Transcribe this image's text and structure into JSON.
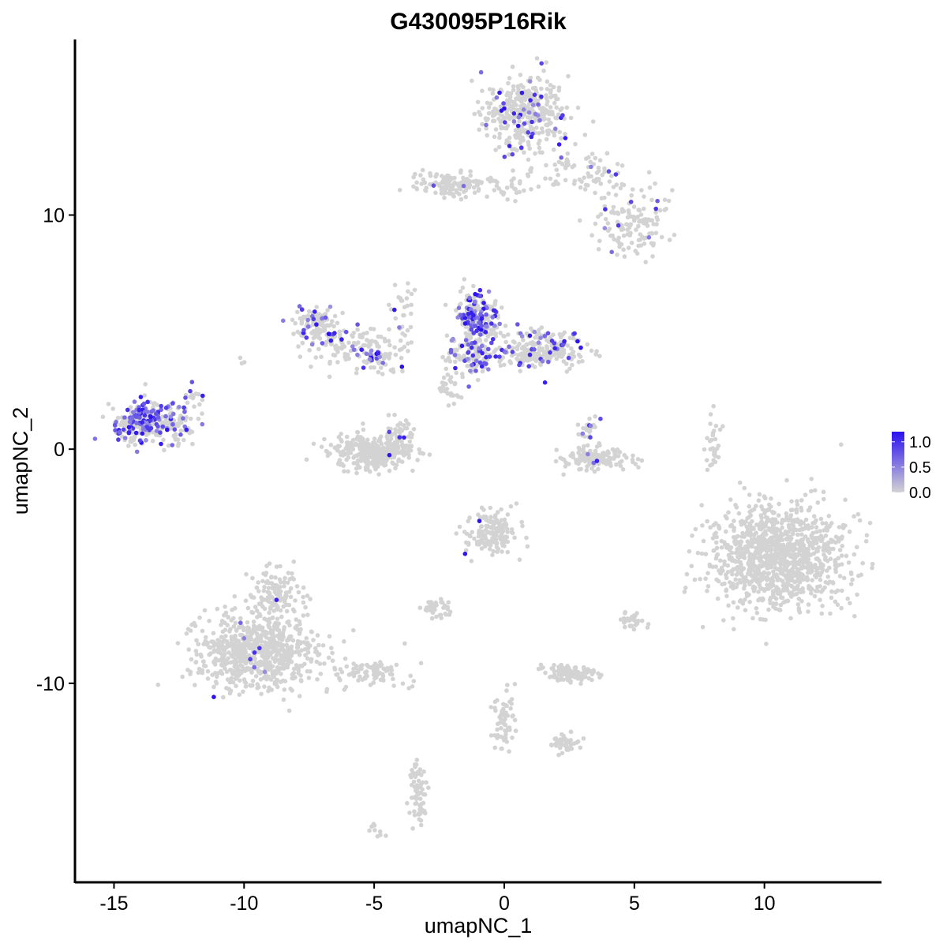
{
  "chart_data": {
    "type": "scatter",
    "title": "G430095P16Rik",
    "xlabel": "umapNC_1",
    "ylabel": "umapNC_2",
    "xlim": [
      -16.5,
      14.5
    ],
    "ylim": [
      -18.5,
      17.5
    ],
    "xticks": [
      -15,
      -10,
      -5,
      0,
      5,
      10
    ],
    "yticks": [
      -10,
      0,
      10
    ],
    "grid": false,
    "legend": {
      "placement": "right",
      "min": 0.0,
      "max": 1.2,
      "breaks": [
        "1.0",
        "0.5",
        "0.0"
      ],
      "low_color": "#d3d3d3",
      "high_color": "#2a10f0"
    },
    "point_color_default": "#d3d3d3",
    "clusters": [
      {
        "cx": 0.8,
        "cy": 14.3,
        "sx": 1.0,
        "sy": 1.0,
        "n": 360,
        "expr_frac": 0.1
      },
      {
        "cx": 2.8,
        "cy": 11.8,
        "sx": 1.3,
        "sy": 0.55,
        "n": 80,
        "expr_frac": 0.03
      },
      {
        "cx": 5.0,
        "cy": 9.6,
        "sx": 0.9,
        "sy": 0.9,
        "n": 140,
        "expr_frac": 0.07
      },
      {
        "cx": -2.2,
        "cy": 11.3,
        "sx": 0.8,
        "sy": 0.35,
        "n": 110,
        "expr_frac": 0.02
      },
      {
        "cx": -0.4,
        "cy": 11.2,
        "sx": 0.9,
        "sy": 0.3,
        "n": 40,
        "expr_frac": 0.0
      },
      {
        "cx": -7.3,
        "cy": 5.3,
        "sx": 0.5,
        "sy": 0.6,
        "n": 120,
        "expr_frac": 0.12
      },
      {
        "cx": -5.8,
        "cy": 4.5,
        "sx": 0.9,
        "sy": 0.6,
        "n": 90,
        "expr_frac": 0.08
      },
      {
        "cx": -4.8,
        "cy": 3.8,
        "sx": 0.4,
        "sy": 0.3,
        "n": 50,
        "expr_frac": 0.3
      },
      {
        "cx": -3.9,
        "cy": 5.7,
        "sx": 0.25,
        "sy": 1.2,
        "n": 40,
        "expr_frac": 0.05
      },
      {
        "cx": -1.0,
        "cy": 5.5,
        "sx": 0.5,
        "sy": 0.7,
        "n": 220,
        "expr_frac": 0.35
      },
      {
        "cx": -1.2,
        "cy": 4.0,
        "sx": 0.6,
        "sy": 0.5,
        "n": 130,
        "expr_frac": 0.2
      },
      {
        "cx": 1.5,
        "cy": 4.2,
        "sx": 1.1,
        "sy": 0.5,
        "n": 260,
        "expr_frac": 0.15
      },
      {
        "cx": -2.2,
        "cy": 2.6,
        "sx": 0.3,
        "sy": 0.6,
        "n": 30,
        "expr_frac": 0.0
      },
      {
        "cx": -14.0,
        "cy": 1.2,
        "sx": 0.7,
        "sy": 0.55,
        "n": 260,
        "expr_frac": 0.4
      },
      {
        "cx": -12.6,
        "cy": 1.1,
        "sx": 0.5,
        "sy": 0.6,
        "n": 80,
        "expr_frac": 0.2
      },
      {
        "cx": -5.1,
        "cy": -0.1,
        "sx": 1.0,
        "sy": 0.45,
        "n": 300,
        "expr_frac": 0.0
      },
      {
        "cx": -4.0,
        "cy": 0.5,
        "sx": 0.35,
        "sy": 0.4,
        "n": 60,
        "expr_frac": 0.08
      },
      {
        "cx": 3.5,
        "cy": -0.4,
        "sx": 0.8,
        "sy": 0.3,
        "n": 140,
        "expr_frac": 0.01
      },
      {
        "cx": 3.2,
        "cy": 0.7,
        "sx": 0.25,
        "sy": 0.35,
        "n": 25,
        "expr_frac": 0.25
      },
      {
        "cx": 10.5,
        "cy": -4.6,
        "sx": 1.6,
        "sy": 1.4,
        "n": 1100,
        "expr_frac": 0.0
      },
      {
        "cx": -0.5,
        "cy": -3.6,
        "sx": 0.6,
        "sy": 0.55,
        "n": 160,
        "expr_frac": 0.01
      },
      {
        "cx": -9.5,
        "cy": -8.7,
        "sx": 1.4,
        "sy": 1.0,
        "n": 700,
        "expr_frac": 0.01
      },
      {
        "cx": -8.8,
        "cy": -6.2,
        "sx": 0.6,
        "sy": 0.7,
        "n": 120,
        "expr_frac": 0.01
      },
      {
        "cx": -5.2,
        "cy": -9.5,
        "sx": 0.9,
        "sy": 0.35,
        "n": 90,
        "expr_frac": 0.01
      },
      {
        "cx": 2.5,
        "cy": -9.6,
        "sx": 0.6,
        "sy": 0.25,
        "n": 110,
        "expr_frac": 0.01
      },
      {
        "cx": -2.6,
        "cy": -6.8,
        "sx": 0.35,
        "sy": 0.25,
        "n": 40,
        "expr_frac": 0.02
      },
      {
        "cx": 0.0,
        "cy": -11.6,
        "sx": 0.25,
        "sy": 0.9,
        "n": 60,
        "expr_frac": 0.0
      },
      {
        "cx": 2.3,
        "cy": -12.5,
        "sx": 0.35,
        "sy": 0.3,
        "n": 40,
        "expr_frac": 0.0
      },
      {
        "cx": -3.3,
        "cy": -14.7,
        "sx": 0.2,
        "sy": 0.8,
        "n": 70,
        "expr_frac": 0.0
      },
      {
        "cx": 8.0,
        "cy": 0.2,
        "sx": 0.2,
        "sy": 0.7,
        "n": 30,
        "expr_frac": 0.0
      },
      {
        "cx": 5.0,
        "cy": -7.3,
        "sx": 0.3,
        "sy": 0.25,
        "n": 30,
        "expr_frac": 0.03
      },
      {
        "cx": -10.0,
        "cy": 3.8,
        "sx": 0.1,
        "sy": 0.1,
        "n": 3,
        "expr_frac": 0.0
      },
      {
        "cx": -11.8,
        "cy": 2.3,
        "sx": 0.3,
        "sy": 0.3,
        "n": 12,
        "expr_frac": 0.3
      },
      {
        "cx": -5.0,
        "cy": -16.3,
        "sx": 0.3,
        "sy": 0.2,
        "n": 10,
        "expr_frac": 0.0
      }
    ]
  }
}
